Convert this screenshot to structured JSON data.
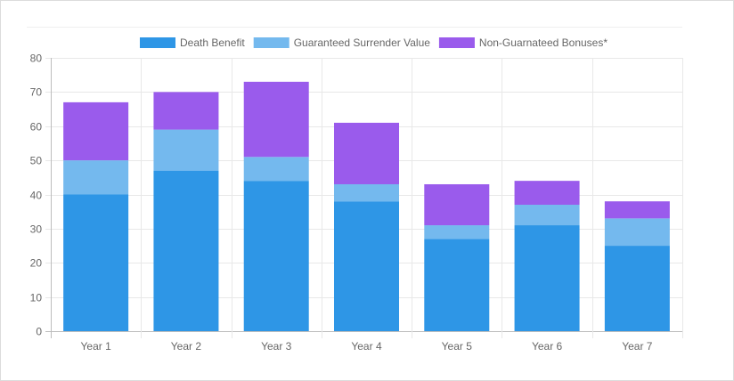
{
  "chart_data": {
    "type": "bar",
    "stacked": true,
    "categories": [
      "Year 1",
      "Year 2",
      "Year 3",
      "Year 4",
      "Year 5",
      "Year 6",
      "Year 7"
    ],
    "series": [
      {
        "name": "Death Benefit",
        "color": "#2e96e6",
        "values": [
          40,
          47,
          44,
          38,
          27,
          31,
          25
        ]
      },
      {
        "name": "Guaranteed Surrender Value",
        "color": "#74b9ee",
        "values": [
          10,
          12,
          7,
          5,
          4,
          6,
          8
        ]
      },
      {
        "name": "Non-Guarnateed Bonuses*",
        "color": "#9a5bec",
        "values": [
          17,
          11,
          22,
          18,
          12,
          7,
          5
        ]
      }
    ],
    "ylim": [
      0,
      80
    ],
    "yticks": [
      0,
      10,
      20,
      30,
      40,
      50,
      60,
      70,
      80
    ],
    "xlabel": "",
    "ylabel": "",
    "grid": true,
    "legend_position": "top"
  }
}
